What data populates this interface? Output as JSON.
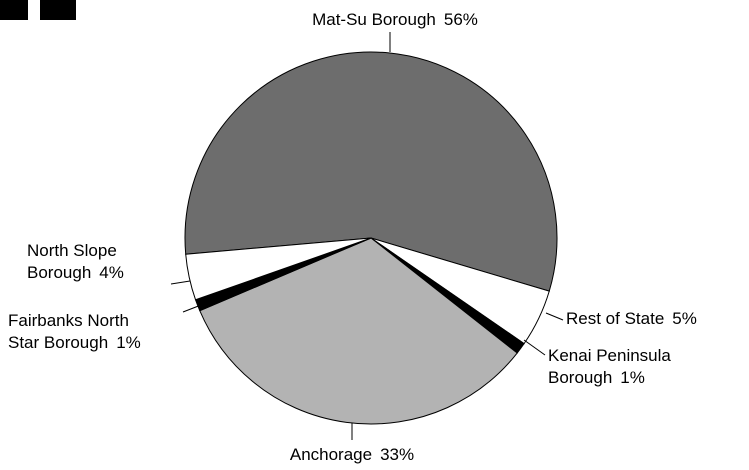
{
  "chart_data": {
    "type": "pie",
    "categories": [
      "Mat-Su Borough",
      "Rest of State",
      "Kenai Peninsula Borough",
      "Anchorage",
      "Fairbanks North Star Borough",
      "North Slope Borough"
    ],
    "values": [
      56,
      5,
      1,
      33,
      1,
      4
    ],
    "value_labels": [
      "56%",
      "5%",
      "1%",
      "33%",
      "1%",
      "4%"
    ],
    "colors": [
      "#6d6d6d",
      "#ffffff",
      "#000000",
      "#b3b3b3",
      "#000000",
      "#ffffff"
    ]
  }
}
